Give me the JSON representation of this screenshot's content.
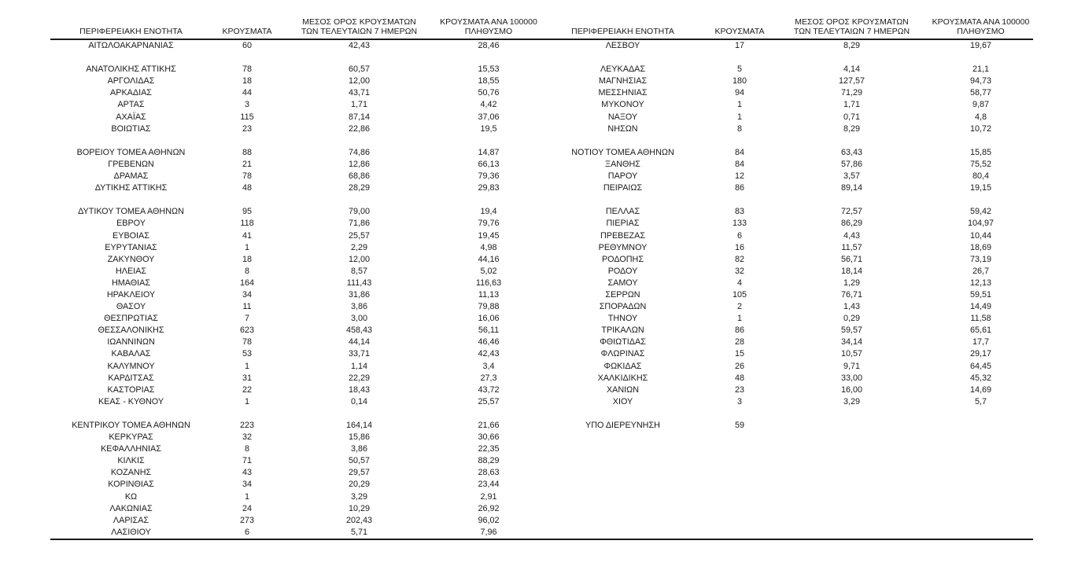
{
  "page": {
    "background": "#ffffff",
    "text_color": "#1a1a1a",
    "rule_color": "#1a1a1a"
  },
  "table": {
    "headers": {
      "region": "ΠΕΡΙΦΕΡΕΙΑΚΗ ΕΝΟΤΗΤΑ",
      "cases": "ΚΡΟΥΣΜΑΤΑ",
      "avg_line1": "ΜΕΣΟΣ ΟΡΟΣ ΚΡΟΥΣΜΑΤΩΝ",
      "avg_line2": "ΤΩΝ ΤΕΛΕΥΤΑΙΩΝ 7 ΗΜΕΡΩΝ",
      "per100k_line1": "ΚΡΟΥΣΜΑΤΑ ΑΝΑ 100000",
      "per100k_line2": "ΠΛΗΘΥΣΜΟ"
    },
    "left_rows": [
      {
        "name": "ΑΙΤΩΛΟΑΚΑΡΝΑΝΙΑΣ",
        "cases": "60",
        "avg7": "42,43",
        "per100k": "28,46"
      },
      null,
      {
        "name": "ΑΝΑΤΟΛΙΚΗΣ ΑΤΤΙΚΗΣ",
        "cases": "78",
        "avg7": "60,57",
        "per100k": "15,53"
      },
      {
        "name": "ΑΡΓΟΛΙΔΑΣ",
        "cases": "18",
        "avg7": "12,00",
        "per100k": "18,55"
      },
      {
        "name": "ΑΡΚΑΔΙΑΣ",
        "cases": "44",
        "avg7": "43,71",
        "per100k": "50,76"
      },
      {
        "name": "ΑΡΤΑΣ",
        "cases": "3",
        "avg7": "1,71",
        "per100k": "4,42"
      },
      {
        "name": "ΑΧΑΪΑΣ",
        "cases": "115",
        "avg7": "87,14",
        "per100k": "37,06"
      },
      {
        "name": "ΒΟΙΩΤΙΑΣ",
        "cases": "23",
        "avg7": "22,86",
        "per100k": "19,5"
      },
      null,
      {
        "name": "ΒΟΡΕΙΟΥ ΤΟΜΕΑ ΑΘΗΝΩΝ",
        "cases": "88",
        "avg7": "74,86",
        "per100k": "14,87"
      },
      {
        "name": "ΓΡΕΒΕΝΩΝ",
        "cases": "21",
        "avg7": "12,86",
        "per100k": "66,13"
      },
      {
        "name": "ΔΡΑΜΑΣ",
        "cases": "78",
        "avg7": "68,86",
        "per100k": "79,36"
      },
      {
        "name": "ΔΥΤΙΚΗΣ ΑΤΤΙΚΗΣ",
        "cases": "48",
        "avg7": "28,29",
        "per100k": "29,83"
      },
      null,
      {
        "name": "ΔΥΤΙΚΟΥ ΤΟΜΕΑ ΑΘΗΝΩΝ",
        "cases": "95",
        "avg7": "79,00",
        "per100k": "19,4"
      },
      {
        "name": "ΕΒΡΟΥ",
        "cases": "118",
        "avg7": "71,86",
        "per100k": "79,76"
      },
      {
        "name": "ΕΥΒΟΙΑΣ",
        "cases": "41",
        "avg7": "25,57",
        "per100k": "19,45"
      },
      {
        "name": "ΕΥΡΥΤΑΝΙΑΣ",
        "cases": "1",
        "avg7": "2,29",
        "per100k": "4,98"
      },
      {
        "name": "ΖΑΚΥΝΘΟΥ",
        "cases": "18",
        "avg7": "12,00",
        "per100k": "44,16"
      },
      {
        "name": "ΗΛΕΙΑΣ",
        "cases": "8",
        "avg7": "8,57",
        "per100k": "5,02"
      },
      {
        "name": "ΗΜΑΘΙΑΣ",
        "cases": "164",
        "avg7": "111,43",
        "per100k": "116,63"
      },
      {
        "name": "ΗΡΑΚΛΕΙΟΥ",
        "cases": "34",
        "avg7": "31,86",
        "per100k": "11,13"
      },
      {
        "name": "ΘΑΣΟΥ",
        "cases": "11",
        "avg7": "3,86",
        "per100k": "79,88"
      },
      {
        "name": "ΘΕΣΠΡΩΤΙΑΣ",
        "cases": "7",
        "avg7": "3,00",
        "per100k": "16,06"
      },
      {
        "name": "ΘΕΣΣΑΛΟΝΙΚΗΣ",
        "cases": "623",
        "avg7": "458,43",
        "per100k": "56,11"
      },
      {
        "name": "ΙΩΑΝΝΙΝΩΝ",
        "cases": "78",
        "avg7": "44,14",
        "per100k": "46,46"
      },
      {
        "name": "ΚΑΒΑΛΑΣ",
        "cases": "53",
        "avg7": "33,71",
        "per100k": "42,43"
      },
      {
        "name": "ΚΑΛΥΜΝΟΥ",
        "cases": "1",
        "avg7": "1,14",
        "per100k": "3,4"
      },
      {
        "name": "ΚΑΡΔΙΤΣΑΣ",
        "cases": "31",
        "avg7": "22,29",
        "per100k": "27,3"
      },
      {
        "name": "ΚΑΣΤΟΡΙΑΣ",
        "cases": "22",
        "avg7": "18,43",
        "per100k": "43,72"
      },
      {
        "name": "ΚΕΑΣ - ΚΥΘΝΟΥ",
        "cases": "1",
        "avg7": "0,14",
        "per100k": "25,57"
      },
      null,
      {
        "name": "ΚΕΝΤΡΙΚΟΥ ΤΟΜΕΑ ΑΘΗΝΩΝ",
        "cases": "223",
        "avg7": "164,14",
        "per100k": "21,66"
      },
      {
        "name": "ΚΕΡΚΥΡΑΣ",
        "cases": "32",
        "avg7": "15,86",
        "per100k": "30,66"
      },
      {
        "name": "ΚΕΦΑΛΛΗΝΙΑΣ",
        "cases": "8",
        "avg7": "3,86",
        "per100k": "22,35"
      },
      {
        "name": "ΚΙΛΚΙΣ",
        "cases": "71",
        "avg7": "50,57",
        "per100k": "88,29"
      },
      {
        "name": "ΚΟΖΑΝΗΣ",
        "cases": "43",
        "avg7": "29,57",
        "per100k": "28,63"
      },
      {
        "name": "ΚΟΡΙΝΘΙΑΣ",
        "cases": "34",
        "avg7": "20,29",
        "per100k": "23,44"
      },
      {
        "name": "ΚΩ",
        "cases": "1",
        "avg7": "3,29",
        "per100k": "2,91"
      },
      {
        "name": "ΛΑΚΩΝΙΑΣ",
        "cases": "24",
        "avg7": "10,29",
        "per100k": "26,92"
      },
      {
        "name": "ΛΑΡΙΣΑΣ",
        "cases": "273",
        "avg7": "202,43",
        "per100k": "96,02"
      },
      {
        "name": "ΛΑΣΙΘΙΟΥ",
        "cases": "6",
        "avg7": "5,71",
        "per100k": "7,96"
      }
    ],
    "right_rows": [
      {
        "name": "ΛΕΣΒΟΥ",
        "cases": "17",
        "avg7": "8,29",
        "per100k": "19,67"
      },
      null,
      {
        "name": "ΛΕΥΚΑΔΑΣ",
        "cases": "5",
        "avg7": "4,14",
        "per100k": "21,1"
      },
      {
        "name": "ΜΑΓΝΗΣΙΑΣ",
        "cases": "180",
        "avg7": "127,57",
        "per100k": "94,73"
      },
      {
        "name": "ΜΕΣΣΗΝΙΑΣ",
        "cases": "94",
        "avg7": "71,29",
        "per100k": "58,77"
      },
      {
        "name": "ΜΥΚΟΝΟΥ",
        "cases": "1",
        "avg7": "1,71",
        "per100k": "9,87"
      },
      {
        "name": "ΝΑΞΟΥ",
        "cases": "1",
        "avg7": "0,71",
        "per100k": "4,8"
      },
      {
        "name": "ΝΗΣΩΝ",
        "cases": "8",
        "avg7": "8,29",
        "per100k": "10,72"
      },
      null,
      {
        "name": "ΝΟΤΙΟΥ ΤΟΜΕΑ ΑΘΗΝΩΝ",
        "cases": "84",
        "avg7": "63,43",
        "per100k": "15,85"
      },
      {
        "name": "ΞΑΝΘΗΣ",
        "cases": "84",
        "avg7": "57,86",
        "per100k": "75,52"
      },
      {
        "name": "ΠΑΡΟΥ",
        "cases": "12",
        "avg7": "3,57",
        "per100k": "80,4"
      },
      {
        "name": "ΠΕΙΡΑΙΩΣ",
        "cases": "86",
        "avg7": "89,14",
        "per100k": "19,15"
      },
      null,
      {
        "name": "ΠΕΛΛΑΣ",
        "cases": "83",
        "avg7": "72,57",
        "per100k": "59,42"
      },
      {
        "name": "ΠΙΕΡΙΑΣ",
        "cases": "133",
        "avg7": "86,29",
        "per100k": "104,97"
      },
      {
        "name": "ΠΡΕΒΕΖΑΣ",
        "cases": "6",
        "avg7": "4,43",
        "per100k": "10,44"
      },
      {
        "name": "ΡΕΘΥΜΝΟΥ",
        "cases": "16",
        "avg7": "11,57",
        "per100k": "18,69"
      },
      {
        "name": "ΡΟΔΟΠΗΣ",
        "cases": "82",
        "avg7": "56,71",
        "per100k": "73,19"
      },
      {
        "name": "ΡΟΔΟΥ",
        "cases": "32",
        "avg7": "18,14",
        "per100k": "26,7"
      },
      {
        "name": "ΣΑΜΟΥ",
        "cases": "4",
        "avg7": "1,29",
        "per100k": "12,13"
      },
      {
        "name": "ΣΕΡΡΩΝ",
        "cases": "105",
        "avg7": "76,71",
        "per100k": "59,51"
      },
      {
        "name": "ΣΠΟΡΑΔΩΝ",
        "cases": "2",
        "avg7": "1,43",
        "per100k": "14,49"
      },
      {
        "name": "ΤΗΝΟΥ",
        "cases": "1",
        "avg7": "0,29",
        "per100k": "11,58"
      },
      {
        "name": "ΤΡΙΚΑΛΩΝ",
        "cases": "86",
        "avg7": "59,57",
        "per100k": "65,61"
      },
      {
        "name": "ΦΘΙΩΤΙΔΑΣ",
        "cases": "28",
        "avg7": "34,14",
        "per100k": "17,7"
      },
      {
        "name": "ΦΛΩΡΙΝΑΣ",
        "cases": "15",
        "avg7": "10,57",
        "per100k": "29,17"
      },
      {
        "name": "ΦΩΚΙΔΑΣ",
        "cases": "26",
        "avg7": "9,71",
        "per100k": "64,45"
      },
      {
        "name": "ΧΑΛΚΙΔΙΚΗΣ",
        "cases": "48",
        "avg7": "33,00",
        "per100k": "45,32"
      },
      {
        "name": "ΧΑΝΙΩΝ",
        "cases": "23",
        "avg7": "16,00",
        "per100k": "14,69"
      },
      {
        "name": "ΧΙΟΥ",
        "cases": "3",
        "avg7": "3,29",
        "per100k": "5,7"
      },
      null,
      {
        "name": "ΥΠΟ ΔΙΕΡΕΥΝΗΣΗ",
        "cases": "59",
        "avg7": "",
        "per100k": ""
      }
    ]
  }
}
